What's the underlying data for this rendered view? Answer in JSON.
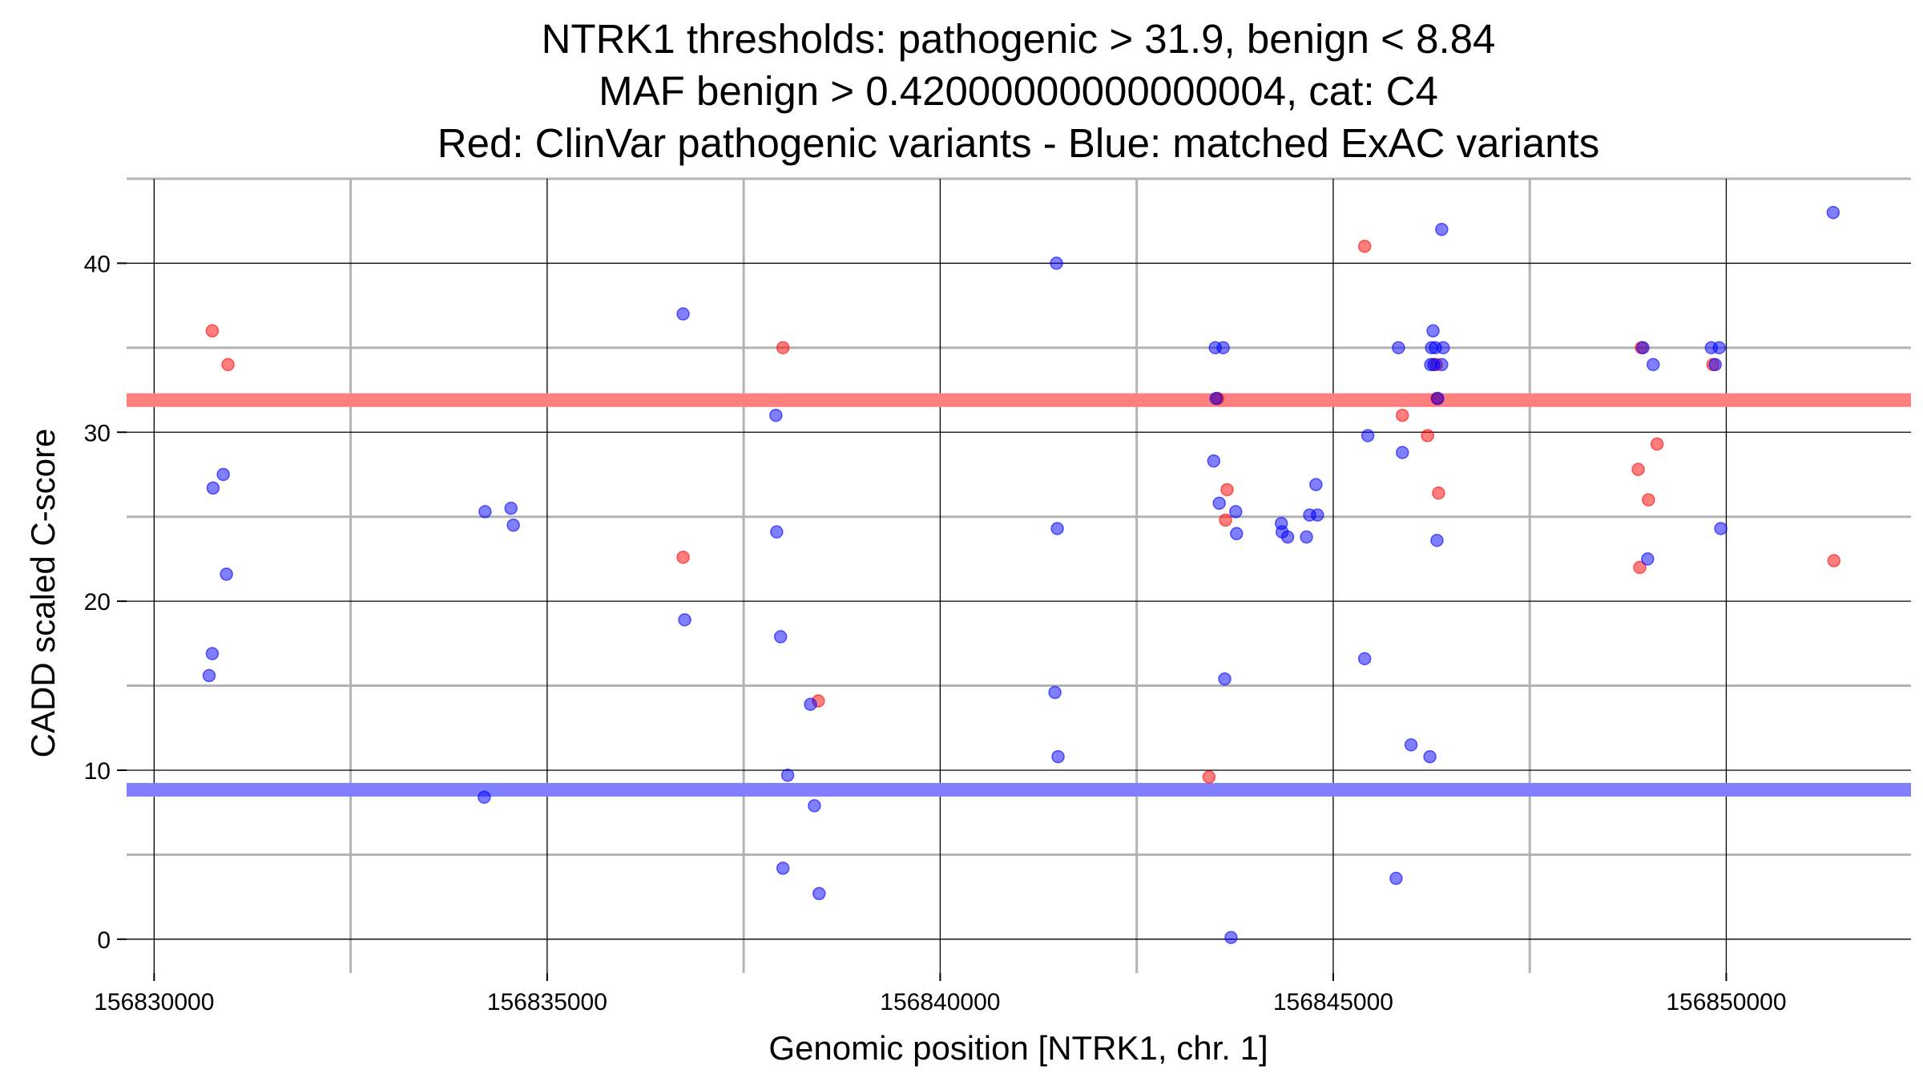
{
  "chart_data": {
    "type": "scatter",
    "title_lines": [
      "NTRK1 thresholds: pathogenic > 31.9, benign < 8.84",
      "MAF benign > 0.42000000000000004, cat: C4",
      "Red: ClinVar pathogenic variants - Blue: matched ExAC variants"
    ],
    "xlabel": "Genomic position [NTRK1, chr. 1]",
    "ylabel": "CADD scaled C-score",
    "xlim": [
      156829650,
      156852350
    ],
    "ylim": [
      -2,
      45
    ],
    "x_major_ticks": [
      156830000,
      156835000,
      156840000,
      156845000,
      156850000
    ],
    "x_major_tick_labels": [
      "156830000",
      "156835000",
      "156840000",
      "156845000",
      "156850000"
    ],
    "x_minor_grid": [
      156832500,
      156837500,
      156842500,
      156847500
    ],
    "y_major_ticks": [
      0,
      10,
      20,
      30,
      40
    ],
    "y_major_tick_labels": [
      "0",
      "10",
      "20",
      "30",
      "40"
    ],
    "y_minor_grid": [
      5,
      15,
      25,
      35,
      45
    ],
    "thresholds": [
      {
        "name": "pathogenic",
        "value": 31.9,
        "color": "#ff7f7f"
      },
      {
        "name": "benign",
        "value": 8.84,
        "color": "#7f7fff"
      }
    ],
    "series": [
      {
        "name": "ClinVar pathogenic variants",
        "color": "#ff0000",
        "points": [
          [
            156830740,
            36.0
          ],
          [
            156830940,
            34.0
          ],
          [
            156836730,
            22.6
          ],
          [
            156838000,
            35.0
          ],
          [
            156838450,
            14.1
          ],
          [
            156843530,
            32.0
          ],
          [
            156843650,
            26.6
          ],
          [
            156843630,
            24.8
          ],
          [
            156843420,
            9.6
          ],
          [
            156845400,
            41.0
          ],
          [
            156845880,
            31.0
          ],
          [
            156846200,
            29.8
          ],
          [
            156846310,
            34.0
          ],
          [
            156846320,
            32.0
          ],
          [
            156846340,
            26.4
          ],
          [
            156848880,
            27.8
          ],
          [
            156848920,
            35.0
          ],
          [
            156849010,
            26.0
          ],
          [
            156849120,
            29.3
          ],
          [
            156848900,
            22.0
          ],
          [
            156849830,
            34.0
          ],
          [
            156851370,
            22.4
          ]
        ]
      },
      {
        "name": "matched ExAC variants",
        "color": "#0000ff",
        "points": [
          [
            156830750,
            26.7
          ],
          [
            156830880,
            27.5
          ],
          [
            156830920,
            21.6
          ],
          [
            156830740,
            16.9
          ],
          [
            156830700,
            15.6
          ],
          [
            156834210,
            25.3
          ],
          [
            156834540,
            25.5
          ],
          [
            156834570,
            24.5
          ],
          [
            156834200,
            8.4
          ],
          [
            156836730,
            37.0
          ],
          [
            156836750,
            18.9
          ],
          [
            156837910,
            31.0
          ],
          [
            156837920,
            24.1
          ],
          [
            156837970,
            17.9
          ],
          [
            156838350,
            13.9
          ],
          [
            156838060,
            9.7
          ],
          [
            156838400,
            7.9
          ],
          [
            156838000,
            4.2
          ],
          [
            156838460,
            2.7
          ],
          [
            156841480,
            40.0
          ],
          [
            156841490,
            24.3
          ],
          [
            156841460,
            14.6
          ],
          [
            156841500,
            10.8
          ],
          [
            156843500,
            35.0
          ],
          [
            156843600,
            35.0
          ],
          [
            156843510,
            32.0
          ],
          [
            156843480,
            28.3
          ],
          [
            156843550,
            25.8
          ],
          [
            156843760,
            25.3
          ],
          [
            156843770,
            24.0
          ],
          [
            156843620,
            15.4
          ],
          [
            156843700,
            0.1
          ],
          [
            156844340,
            24.6
          ],
          [
            156844350,
            24.1
          ],
          [
            156844420,
            23.8
          ],
          [
            156844660,
            23.8
          ],
          [
            156844700,
            25.1
          ],
          [
            156844800,
            25.1
          ],
          [
            156844780,
            26.9
          ],
          [
            156845400,
            16.6
          ],
          [
            156845440,
            29.8
          ],
          [
            156845830,
            35.0
          ],
          [
            156845880,
            28.8
          ],
          [
            156845990,
            11.5
          ],
          [
            156846230,
            10.8
          ],
          [
            156845800,
            3.6
          ],
          [
            156846270,
            36.0
          ],
          [
            156846250,
            35.0
          ],
          [
            156846300,
            35.0
          ],
          [
            156846400,
            35.0
          ],
          [
            156846240,
            34.0
          ],
          [
            156846280,
            34.0
          ],
          [
            156846380,
            34.0
          ],
          [
            156846330,
            32.0
          ],
          [
            156846320,
            23.6
          ],
          [
            156846380,
            42.0
          ],
          [
            156848940,
            35.0
          ],
          [
            156849070,
            34.0
          ],
          [
            156849000,
            22.5
          ],
          [
            156849810,
            35.0
          ],
          [
            156849910,
            35.0
          ],
          [
            156849860,
            34.0
          ],
          [
            156849930,
            24.3
          ],
          [
            156851360,
            43.0
          ]
        ]
      }
    ]
  }
}
